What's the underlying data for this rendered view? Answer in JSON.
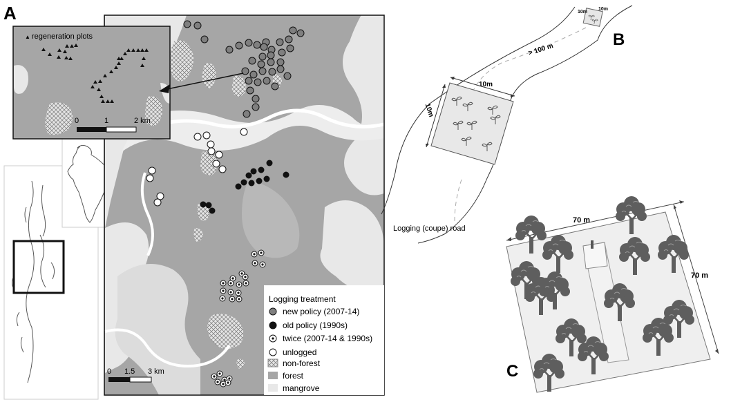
{
  "panels": {
    "a": "A",
    "b": "B",
    "c": "C"
  },
  "inset": {
    "legend": "regeneration plots",
    "scale_ticks": [
      "0",
      "1",
      "2 km"
    ]
  },
  "main_map": {
    "scale_ticks": [
      "0",
      "1.5",
      "3 km"
    ]
  },
  "legend": {
    "title": "Logging treatment",
    "items": [
      {
        "key": "new",
        "label": "new policy (2007-14)",
        "color": "#7f7f7f"
      },
      {
        "key": "old",
        "label": "old policy (1990s)",
        "color": "#111111"
      },
      {
        "key": "twice",
        "label": "twice (2007-14 & 1990s)",
        "color": "#ffffff"
      },
      {
        "key": "unlogged",
        "label": "unlogged",
        "color": "#ffffff"
      },
      {
        "key": "nonforest",
        "label": "non-forest",
        "color": "#e6e6e6"
      },
      {
        "key": "forest",
        "label": "forest",
        "color": "#a6a6a6"
      },
      {
        "key": "mangrove",
        "label": "mangrove",
        "color": "#e8e8e8"
      }
    ]
  },
  "diagram_b": {
    "plot_width": "10m",
    "plot_height": "10m",
    "small_w": "10m",
    "small_h": "10m",
    "distance": "> 100 m",
    "road_label": "Logging (coupe) road"
  },
  "diagram_c": {
    "width": "70 m",
    "height": "70 m"
  },
  "colors": {
    "map_gray": "#a6a6a6",
    "mangrove": "#e8e8e8",
    "tree": "#5e5e5e"
  }
}
